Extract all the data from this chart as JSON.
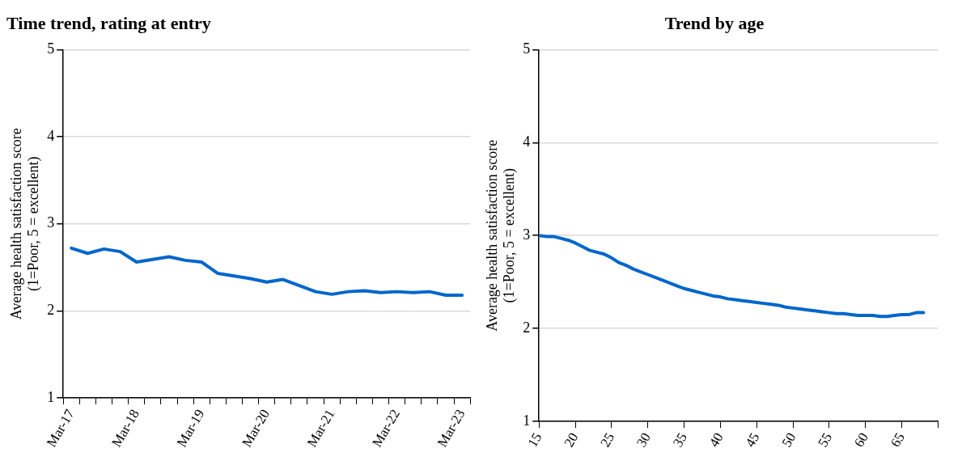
{
  "chart_data": [
    {
      "type": "line",
      "title": "Time trend, rating at entry",
      "ylabel": "Average health satisfaction score\n(1=Poor, 5 = excellent)",
      "categories": [
        "Mar-17",
        null,
        null,
        null,
        "Mar-18",
        null,
        null,
        null,
        "Mar-19",
        null,
        null,
        null,
        "Mar-20",
        null,
        null,
        null,
        "Mar-21",
        null,
        null,
        null,
        "Mar-22",
        null,
        null,
        null,
        "Mar-23"
      ],
      "series": [
        {
          "color": "#0066cc",
          "values": [
            2.72,
            2.66,
            2.71,
            2.68,
            2.56,
            2.59,
            2.62,
            2.58,
            2.56,
            2.43,
            2.4,
            2.37,
            2.33,
            2.36,
            2.29,
            2.22,
            2.19,
            2.22,
            2.23,
            2.21,
            2.22,
            2.21,
            2.22,
            2.18,
            2.18
          ]
        }
      ],
      "ylim": [
        1,
        5
      ],
      "yticks": [
        1,
        2,
        3,
        4,
        5
      ],
      "grid": "y",
      "legend": false,
      "marker": "none",
      "line_style": "solid"
    },
    {
      "type": "line",
      "title": "Trend by age",
      "ylabel": "Average health satisfaction score\n(1=Poor, 5 = excellent)",
      "x": [
        15,
        16,
        17,
        18,
        19,
        20,
        21,
        22,
        23,
        24,
        25,
        26,
        27,
        28,
        29,
        30,
        31,
        32,
        33,
        34,
        35,
        36,
        37,
        38,
        39,
        40,
        41,
        42,
        43,
        44,
        45,
        46,
        47,
        48,
        49,
        50,
        51,
        52,
        53,
        54,
        55,
        56,
        57,
        58,
        59,
        60,
        61,
        62,
        63,
        64,
        65,
        66,
        67,
        68
      ],
      "series": [
        {
          "color": "#0066cc",
          "values": [
            3.0,
            2.99,
            2.99,
            2.97,
            2.95,
            2.92,
            2.88,
            2.84,
            2.82,
            2.8,
            2.76,
            2.71,
            2.68,
            2.64,
            2.61,
            2.58,
            2.55,
            2.52,
            2.49,
            2.46,
            2.43,
            2.41,
            2.39,
            2.37,
            2.35,
            2.34,
            2.32,
            2.31,
            2.3,
            2.29,
            2.28,
            2.27,
            2.26,
            2.25,
            2.23,
            2.22,
            2.21,
            2.2,
            2.19,
            2.18,
            2.17,
            2.16,
            2.16,
            2.15,
            2.14,
            2.14,
            2.14,
            2.13,
            2.13,
            2.14,
            2.15,
            2.15,
            2.17,
            2.17
          ]
        }
      ],
      "xlim": [
        15,
        70
      ],
      "xticks": [
        15,
        20,
        25,
        30,
        35,
        40,
        45,
        50,
        55,
        60,
        65,
        {
          "value": 70,
          "label": null
        }
      ],
      "ylim": [
        1,
        5
      ],
      "yticks": [
        1,
        2,
        3,
        4,
        5
      ],
      "grid": "y",
      "legend": false,
      "marker": "none",
      "line_style": "solid"
    }
  ]
}
